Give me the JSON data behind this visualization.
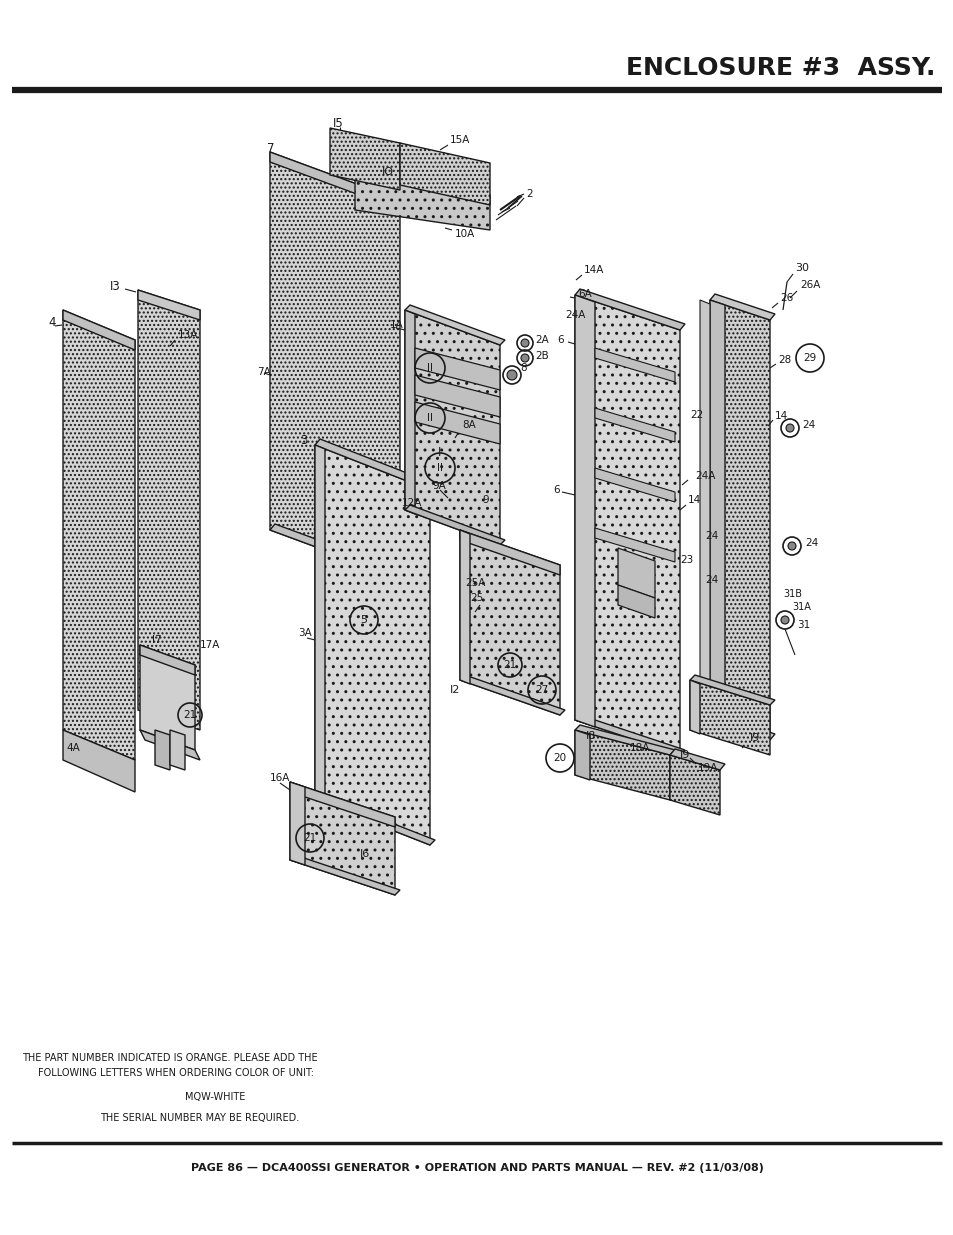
{
  "title": "ENCLOSURE #3  ASSY.",
  "footer_text": "PAGE 86 — DCA400SSI GENERATOR • OPERATION AND PARTS MANUAL — REV. #2 (11/03/08)",
  "note_line1": "THE PART NUMBER INDICATED IS ORANGE. PLEASE ADD THE",
  "note_line2": "FOLLOWING LETTERS WHEN ORDERING COLOR OF UNIT:",
  "note_line3": "MQW-WHITE",
  "note_line4": "THE SERIAL NUMBER MAY BE REQUIRED.",
  "bg_color": "#ffffff",
  "fig_width": 9.54,
  "fig_height": 12.35
}
